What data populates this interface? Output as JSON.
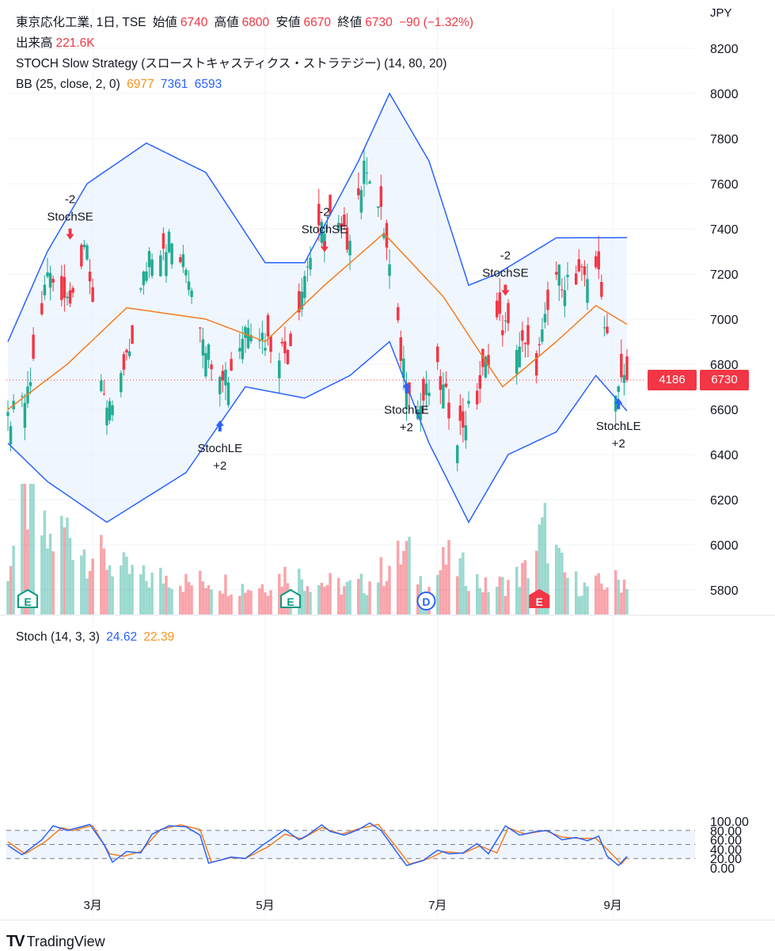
{
  "header": {
    "symbol_line": "東京応化工業, 1日, TSE",
    "open_label": "始値",
    "open": "6740",
    "high_label": "高値",
    "high": "6800",
    "low_label": "安値",
    "low": "6670",
    "close_label": "終値",
    "close": "6730",
    "change": "−90 (−1.32%)",
    "volume_label": "出来高",
    "volume": "221.6K",
    "strategy": "STOCH Slow Strategy (スローストキャスティクス・ストラテジー) (14, 80, 20)",
    "bb_label": "BB (25, close, 2, 0)",
    "bb_basis": "6977",
    "bb_upper": "7361",
    "bb_lower": "6593",
    "stoch_label": "Stoch (14, 3, 3)",
    "stoch_k": "24.62",
    "stoch_d": "22.39"
  },
  "price_axis": {
    "currency": "JPY",
    "ticks": [
      "8200",
      "8000",
      "7800",
      "7600",
      "7400",
      "7200",
      "7000",
      "6800",
      "6600",
      "6400",
      "6200",
      "6000",
      "5800"
    ],
    "countdown": "4186",
    "last_price": "6730"
  },
  "stoch_axis": {
    "ticks": [
      "100.00",
      "80.00",
      "60.00",
      "40.00",
      "20.00",
      "0.00"
    ]
  },
  "time_axis": {
    "labels": [
      "3月",
      "5月",
      "7月",
      "9月"
    ]
  },
  "signals": [
    {
      "type": "short",
      "label": "StochSE",
      "qty": "-2",
      "date": "2024-02-22"
    },
    {
      "type": "long",
      "label": "StochLE",
      "qty": "+2",
      "date": "2024-04-15"
    },
    {
      "type": "short",
      "label": "StochSE",
      "qty": "-2",
      "date": "2024-05-22"
    },
    {
      "type": "long",
      "label": "StochLE",
      "qty": "+2",
      "date": "2024-06-20"
    },
    {
      "type": "short",
      "label": "StochSE",
      "qty": "-2",
      "date": "2024-07-25"
    },
    {
      "type": "long",
      "label": "StochLE",
      "qty": "+2",
      "date": "2024-09-03"
    }
  ],
  "event_markers": [
    {
      "letter": "E",
      "date": "2024-02-07",
      "color": "#089981"
    },
    {
      "letter": "E",
      "date": "2024-05-10",
      "color": "#089981"
    },
    {
      "letter": "D",
      "date": "2024-06-27",
      "color": "#2962ff"
    },
    {
      "letter": "E",
      "date": "2024-08-06",
      "color": "#f23645"
    }
  ],
  "colors": {
    "up": "#22ab94",
    "down": "#f23645",
    "bb": "#2962ff",
    "basis": "#f57c1f",
    "stoch_k": "#2962ff",
    "stoch_d": "#f57c1f",
    "band_fill": "#e3effd"
  },
  "chart_data": [
    {
      "type": "candlestick",
      "title": "東京応化工業, 1日, TSE",
      "ylabel": "JPY",
      "ylim": [
        5700,
        8300
      ],
      "x_start": "2024-01-31",
      "x_end": "2024-09-06",
      "x_ticks": [
        "3月",
        "5月",
        "7月",
        "9月"
      ],
      "series_anchors": {
        "close": [
          [
            "2024-01-31",
            6550
          ],
          [
            "2024-02-07",
            6650
          ],
          [
            "2024-02-14",
            7200
          ],
          [
            "2024-02-21",
            7100
          ],
          [
            "2024-02-28",
            7300
          ],
          [
            "2024-03-06",
            6550
          ],
          [
            "2024-03-13",
            6800
          ],
          [
            "2024-03-21",
            7300
          ],
          [
            "2024-03-28",
            7350
          ],
          [
            "2024-04-04",
            7200
          ],
          [
            "2024-04-11",
            6850
          ],
          [
            "2024-04-18",
            6750
          ],
          [
            "2024-04-25",
            7000
          ],
          [
            "2024-05-02",
            6900
          ],
          [
            "2024-05-09",
            6850
          ],
          [
            "2024-05-16",
            7250
          ],
          [
            "2024-05-23",
            7450
          ],
          [
            "2024-05-30",
            7350
          ],
          [
            "2024-06-06",
            7700
          ],
          [
            "2024-06-12",
            7400
          ],
          [
            "2024-06-18",
            6850
          ],
          [
            "2024-06-24",
            6600
          ],
          [
            "2024-07-01",
            6750
          ],
          [
            "2024-07-08",
            6500
          ],
          [
            "2024-07-15",
            6650
          ],
          [
            "2024-07-22",
            7000
          ],
          [
            "2024-07-29",
            6900
          ],
          [
            "2024-08-05",
            6800
          ],
          [
            "2024-08-12",
            7200
          ],
          [
            "2024-08-19",
            7150
          ],
          [
            "2024-08-26",
            7250
          ],
          [
            "2024-09-02",
            6700
          ],
          [
            "2024-09-06",
            6730
          ]
        ],
        "bb_upper": [
          [
            "2024-01-31",
            6900
          ],
          [
            "2024-02-14",
            7300
          ],
          [
            "2024-02-28",
            7600
          ],
          [
            "2024-03-20",
            7780
          ],
          [
            "2024-04-10",
            7650
          ],
          [
            "2024-05-01",
            7250
          ],
          [
            "2024-05-15",
            7250
          ],
          [
            "2024-06-03",
            7700
          ],
          [
            "2024-06-14",
            8000
          ],
          [
            "2024-06-28",
            7700
          ],
          [
            "2024-07-12",
            7150
          ],
          [
            "2024-07-22",
            7200
          ],
          [
            "2024-08-12",
            7360
          ],
          [
            "2024-09-06",
            7361
          ]
        ],
        "bb_basis": [
          [
            "2024-01-31",
            6600
          ],
          [
            "2024-02-21",
            6800
          ],
          [
            "2024-03-13",
            7050
          ],
          [
            "2024-04-10",
            7000
          ],
          [
            "2024-05-01",
            6900
          ],
          [
            "2024-05-22",
            7150
          ],
          [
            "2024-06-12",
            7380
          ],
          [
            "2024-07-03",
            7100
          ],
          [
            "2024-07-24",
            6700
          ],
          [
            "2024-08-12",
            6900
          ],
          [
            "2024-08-26",
            7060
          ],
          [
            "2024-09-06",
            6977
          ]
        ],
        "bb_lower": [
          [
            "2024-01-31",
            6450
          ],
          [
            "2024-02-14",
            6280
          ],
          [
            "2024-03-06",
            6100
          ],
          [
            "2024-04-03",
            6320
          ],
          [
            "2024-04-24",
            6700
          ],
          [
            "2024-05-15",
            6650
          ],
          [
            "2024-05-31",
            6750
          ],
          [
            "2024-06-14",
            6900
          ],
          [
            "2024-06-28",
            6450
          ],
          [
            "2024-07-12",
            6100
          ],
          [
            "2024-07-26",
            6400
          ],
          [
            "2024-08-12",
            6500
          ],
          [
            "2024-08-26",
            6750
          ],
          [
            "2024-09-06",
            6593
          ]
        ],
        "volume": [
          [
            "2024-01-31",
            60
          ],
          [
            "2024-02-07",
            150
          ],
          [
            "2024-02-14",
            90
          ],
          [
            "2024-02-21",
            110
          ],
          [
            "2024-02-28",
            80
          ],
          [
            "2024-03-06",
            70
          ],
          [
            "2024-03-13",
            55
          ],
          [
            "2024-03-20",
            45
          ],
          [
            "2024-03-28",
            50
          ],
          [
            "2024-04-04",
            40
          ],
          [
            "2024-04-11",
            45
          ],
          [
            "2024-04-18",
            40
          ],
          [
            "2024-04-25",
            35
          ],
          [
            "2024-05-02",
            40
          ],
          [
            "2024-05-09",
            55
          ],
          [
            "2024-05-16",
            45
          ],
          [
            "2024-05-23",
            40
          ],
          [
            "2024-05-30",
            35
          ],
          [
            "2024-06-06",
            40
          ],
          [
            "2024-06-13",
            60
          ],
          [
            "2024-06-20",
            80
          ],
          [
            "2024-06-27",
            30
          ],
          [
            "2024-07-04",
            70
          ],
          [
            "2024-07-11",
            55
          ],
          [
            "2024-07-18",
            35
          ],
          [
            "2024-07-25",
            40
          ],
          [
            "2024-08-01",
            55
          ],
          [
            "2024-08-08",
            110
          ],
          [
            "2024-08-15",
            50
          ],
          [
            "2024-08-22",
            35
          ],
          [
            "2024-08-29",
            40
          ],
          [
            "2024-09-06",
            45
          ]
        ]
      }
    },
    {
      "type": "line",
      "title": "Stoch (14, 3, 3)",
      "ylim": [
        -10,
        110
      ],
      "bands": [
        20,
        50,
        80
      ],
      "series": [
        {
          "name": "%K",
          "anchors": [
            [
              "2024-01-31",
              48
            ],
            [
              "2024-02-05",
              28
            ],
            [
              "2024-02-12",
              60
            ],
            [
              "2024-02-16",
              90
            ],
            [
              "2024-02-21",
              80
            ],
            [
              "2024-02-26",
              88
            ],
            [
              "2024-02-29",
              93
            ],
            [
              "2024-03-05",
              50
            ],
            [
              "2024-03-08",
              12
            ],
            [
              "2024-03-13",
              35
            ],
            [
              "2024-03-18",
              32
            ],
            [
              "2024-03-22",
              72
            ],
            [
              "2024-03-28",
              90
            ],
            [
              "2024-04-03",
              88
            ],
            [
              "2024-04-08",
              70
            ],
            [
              "2024-04-11",
              10
            ],
            [
              "2024-04-16",
              18
            ],
            [
              "2024-04-19",
              23
            ],
            [
              "2024-04-24",
              20
            ],
            [
              "2024-04-30",
              48
            ],
            [
              "2024-05-08",
              82
            ],
            [
              "2024-05-13",
              60
            ],
            [
              "2024-05-16",
              70
            ],
            [
              "2024-05-21",
              92
            ],
            [
              "2024-05-24",
              78
            ],
            [
              "2024-05-29",
              70
            ],
            [
              "2024-06-03",
              82
            ],
            [
              "2024-06-07",
              96
            ],
            [
              "2024-06-11",
              80
            ],
            [
              "2024-06-17",
              30
            ],
            [
              "2024-06-20",
              5
            ],
            [
              "2024-06-26",
              16
            ],
            [
              "2024-07-01",
              38
            ],
            [
              "2024-07-05",
              30
            ],
            [
              "2024-07-10",
              32
            ],
            [
              "2024-07-15",
              52
            ],
            [
              "2024-07-19",
              30
            ],
            [
              "2024-07-25",
              90
            ],
            [
              "2024-07-30",
              70
            ],
            [
              "2024-08-05",
              78
            ],
            [
              "2024-08-09",
              80
            ],
            [
              "2024-08-14",
              60
            ],
            [
              "2024-08-19",
              65
            ],
            [
              "2024-08-23",
              58
            ],
            [
              "2024-08-27",
              68
            ],
            [
              "2024-08-30",
              25
            ],
            [
              "2024-09-03",
              5
            ],
            [
              "2024-09-06",
              24.62
            ]
          ]
        },
        {
          "name": "%D",
          "anchors": [
            [
              "2024-01-31",
              56
            ],
            [
              "2024-02-06",
              30
            ],
            [
              "2024-02-13",
              55
            ],
            [
              "2024-02-19",
              86
            ],
            [
              "2024-02-23",
              80
            ],
            [
              "2024-02-28",
              88
            ],
            [
              "2024-03-01",
              90
            ],
            [
              "2024-03-07",
              30
            ],
            [
              "2024-03-12",
              25
            ],
            [
              "2024-03-18",
              35
            ],
            [
              "2024-03-25",
              82
            ],
            [
              "2024-04-01",
              92
            ],
            [
              "2024-04-08",
              82
            ],
            [
              "2024-04-12",
              12
            ],
            [
              "2024-04-19",
              22
            ],
            [
              "2024-04-24",
              20
            ],
            [
              "2024-05-02",
              45
            ],
            [
              "2024-05-08",
              72
            ],
            [
              "2024-05-14",
              62
            ],
            [
              "2024-05-21",
              86
            ],
            [
              "2024-05-28",
              72
            ],
            [
              "2024-06-04",
              85
            ],
            [
              "2024-06-10",
              93
            ],
            [
              "2024-06-17",
              40
            ],
            [
              "2024-06-21",
              8
            ],
            [
              "2024-06-28",
              20
            ],
            [
              "2024-07-03",
              35
            ],
            [
              "2024-07-10",
              31
            ],
            [
              "2024-07-16",
              47
            ],
            [
              "2024-07-22",
              32
            ],
            [
              "2024-07-26",
              86
            ],
            [
              "2024-08-01",
              72
            ],
            [
              "2024-08-08",
              80
            ],
            [
              "2024-08-14",
              66
            ],
            [
              "2024-08-20",
              63
            ],
            [
              "2024-08-26",
              63
            ],
            [
              "2024-08-30",
              40
            ],
            [
              "2024-09-04",
              8
            ],
            [
              "2024-09-06",
              22.39
            ]
          ]
        }
      ]
    }
  ]
}
